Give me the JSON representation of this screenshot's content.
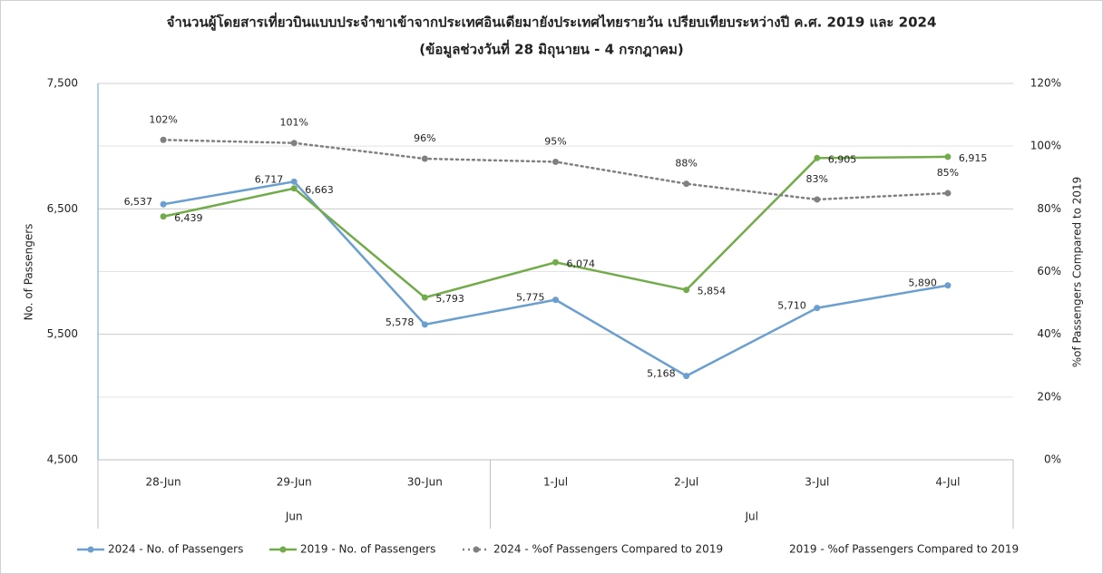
{
  "chart_data": {
    "type": "line",
    "title": "จำนวนผู้โดยสารเที่ยวบินแบบประจำขาเข้าจากประเทศอินเดียมายังประเทศไทยรายวัน เปรียบเทียบระหว่างปี ค.ศ. 2019 และ 2024",
    "subtitle": "(ข้อมูลช่วงวันที่ 28 มิถุนายน - 4 กรกฎาคม)",
    "ylabel": "No. of Passengers",
    "y2label": "%of Passengers Compared to 2019",
    "categories": [
      "28-Jun",
      "29-Jun",
      "30-Jun",
      "1-Jul",
      "2-Jul",
      "3-Jul",
      "4-Jul"
    ],
    "groups": [
      {
        "label": "Jun",
        "count": 3
      },
      {
        "label": "Jul",
        "count": 4
      }
    ],
    "ylim": [
      4500,
      7500
    ],
    "yticks": [
      {
        "value": 4500,
        "label": "4,500"
      },
      {
        "value": 5500,
        "label": "5,500"
      },
      {
        "value": 6500,
        "label": "6,500"
      },
      {
        "value": 7500,
        "label": "7,500"
      }
    ],
    "y2lim": [
      0,
      120
    ],
    "y2ticks": [
      {
        "value": 0,
        "label": "0%"
      },
      {
        "value": 20,
        "label": "20%"
      },
      {
        "value": 40,
        "label": "40%"
      },
      {
        "value": 60,
        "label": "60%"
      },
      {
        "value": 80,
        "label": "80%"
      },
      {
        "value": 100,
        "label": "100%"
      },
      {
        "value": 120,
        "label": "120%"
      }
    ],
    "grid": true,
    "series": [
      {
        "name": "2024 - No. of Passengers",
        "color": "#6a9fd0",
        "style": "solid",
        "values": [
          6537,
          6717,
          5578,
          5775,
          5168,
          5710,
          5890
        ],
        "value_labels": [
          "6,537",
          "6,717",
          "5,578",
          "5,775",
          "5,168",
          "5,710",
          "5,890"
        ]
      },
      {
        "name": "2019 - No. of Passengers",
        "color": "#72ab4a",
        "style": "solid",
        "values": [
          6439,
          6663,
          5793,
          6074,
          5854,
          6905,
          6915
        ],
        "value_labels": [
          "6,439",
          "6,663",
          "5,793",
          "6,074",
          "5,854",
          "6,905",
          "6,915"
        ]
      },
      {
        "name": "2024 - %of Passengers Compared to 2019",
        "color": "#808080",
        "style": "dotted",
        "axis": "y2",
        "values": [
          102,
          101,
          96,
          95,
          88,
          83,
          85
        ],
        "value_labels": [
          "102%",
          "101%",
          "96%",
          "95%",
          "88%",
          "83%",
          "85%"
        ]
      },
      {
        "name": "2019 - %of Passengers Compared to 2019",
        "color": "#808080",
        "style": "none",
        "axis": "y2",
        "values": [
          null,
          null,
          null,
          null,
          null,
          null,
          null
        ]
      }
    ]
  }
}
